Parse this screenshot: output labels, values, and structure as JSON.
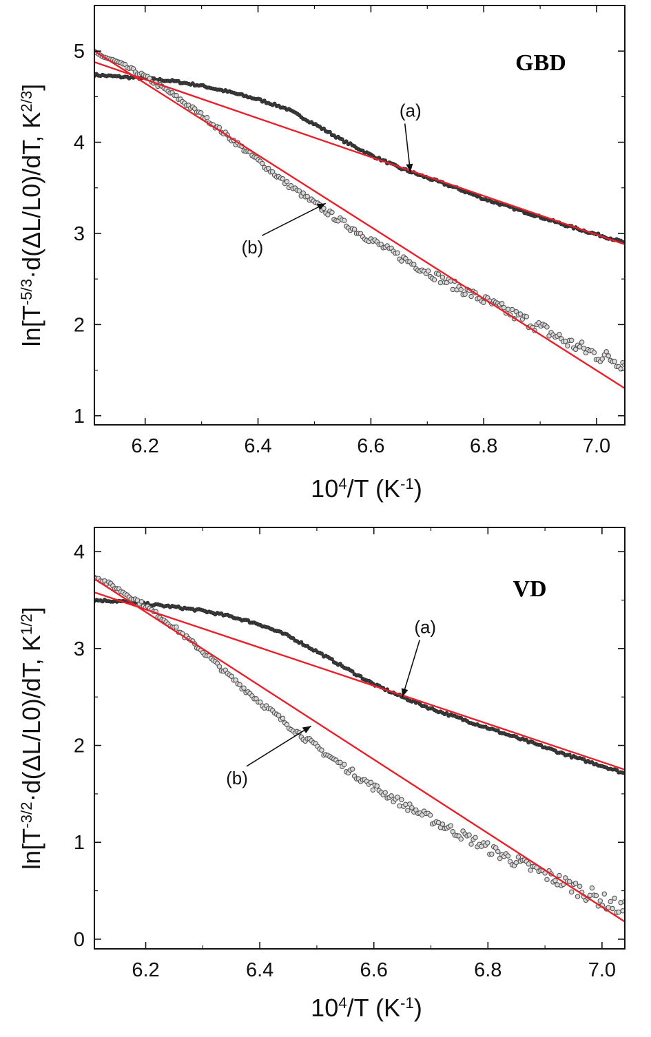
{
  "chart_data": [
    {
      "type": "scatter",
      "panel_label": "GBD",
      "xlabel_parts": [
        "10",
        "4",
        "/T (K",
        "-1",
        ")"
      ],
      "ylabel_parts": [
        "ln[T",
        "-5/3",
        "·d(ΔL/L0)/dT, K",
        "2/3",
        "]"
      ],
      "xlim": [
        6.11,
        7.05
      ],
      "ylim": [
        0.9,
        5.5
      ],
      "xticks": [
        6.2,
        6.4,
        6.6,
        6.8,
        7.0
      ],
      "xtick_labels": [
        "6.2",
        "6.4",
        "6.6",
        "6.8",
        "7.0"
      ],
      "yticks": [
        1,
        2,
        3,
        4,
        5
      ],
      "ytick_labels": [
        "1",
        "2",
        "3",
        "4",
        "5"
      ],
      "grid": false,
      "series": [
        {
          "name": "(a)",
          "color": "#2b2b2b",
          "x": [
            6.11,
            6.15,
            6.2,
            6.25,
            6.3,
            6.35,
            6.4,
            6.45,
            6.5,
            6.55,
            6.6,
            6.65,
            6.7,
            6.75,
            6.8,
            6.85,
            6.9,
            6.95,
            7.0,
            7.05
          ],
          "y": [
            4.74,
            4.72,
            4.7,
            4.67,
            4.62,
            4.55,
            4.47,
            4.37,
            4.2,
            4.02,
            3.86,
            3.72,
            3.61,
            3.5,
            3.38,
            3.28,
            3.18,
            3.08,
            2.99,
            2.9
          ]
        },
        {
          "name": "(b)",
          "color": "#555555",
          "x": [
            6.11,
            6.15,
            6.2,
            6.25,
            6.3,
            6.35,
            6.4,
            6.45,
            6.5,
            6.55,
            6.6,
            6.65,
            6.7,
            6.75,
            6.8,
            6.85,
            6.9,
            6.95,
            7.0,
            7.05
          ],
          "y": [
            4.98,
            4.88,
            4.72,
            4.52,
            4.3,
            4.05,
            3.8,
            3.55,
            3.33,
            3.12,
            2.93,
            2.75,
            2.58,
            2.42,
            2.27,
            2.12,
            1.97,
            1.8,
            1.67,
            1.58
          ]
        }
      ],
      "fits": [
        {
          "name": "(a)",
          "color": "#e8202a",
          "x": [
            6.11,
            7.05
          ],
          "y": [
            4.88,
            2.88
          ]
        },
        {
          "name": "(b)",
          "color": "#e8202a",
          "x": [
            6.11,
            7.05
          ],
          "y": [
            5.0,
            1.3
          ]
        }
      ],
      "annotations": [
        {
          "text": "(a)",
          "x": 6.67,
          "y": 4.28,
          "arrow_to_x": 6.67,
          "arrow_to_y": 3.67
        },
        {
          "text": "(b)",
          "x": 6.39,
          "y": 2.78,
          "arrow_to_x": 6.52,
          "arrow_to_y": 3.33
        }
      ]
    },
    {
      "type": "scatter",
      "panel_label": "VD",
      "xlabel_parts": [
        "10",
        "4",
        "/T (K",
        "-1",
        ")"
      ],
      "ylabel_parts": [
        "ln[T",
        "-3/2",
        "·d(ΔL/L0)/dT, K",
        "1/2",
        "]"
      ],
      "xlim": [
        6.11,
        7.04
      ],
      "ylim": [
        -0.1,
        4.25
      ],
      "xticks": [
        6.2,
        6.4,
        6.6,
        6.8,
        7.0
      ],
      "xtick_labels": [
        "6.2",
        "6.4",
        "6.6",
        "6.8",
        "7.0"
      ],
      "yticks": [
        0,
        1,
        2,
        3,
        4
      ],
      "ytick_labels": [
        "0",
        "1",
        "2",
        "3",
        "4"
      ],
      "grid": false,
      "series": [
        {
          "name": "(a)",
          "color": "#2b2b2b",
          "x": [
            6.11,
            6.15,
            6.2,
            6.25,
            6.3,
            6.35,
            6.4,
            6.45,
            6.5,
            6.55,
            6.6,
            6.65,
            6.7,
            6.75,
            6.8,
            6.85,
            6.9,
            6.95,
            7.0,
            7.04
          ],
          "y": [
            3.5,
            3.49,
            3.46,
            3.43,
            3.39,
            3.33,
            3.25,
            3.13,
            2.97,
            2.8,
            2.63,
            2.5,
            2.38,
            2.28,
            2.18,
            2.08,
            1.98,
            1.88,
            1.79,
            1.71
          ]
        },
        {
          "name": "(b)",
          "color": "#555555",
          "x": [
            6.11,
            6.15,
            6.2,
            6.25,
            6.3,
            6.35,
            6.4,
            6.45,
            6.5,
            6.55,
            6.6,
            6.65,
            6.7,
            6.75,
            6.8,
            6.85,
            6.9,
            6.95,
            7.0,
            7.04
          ],
          "y": [
            3.75,
            3.62,
            3.44,
            3.22,
            2.97,
            2.7,
            2.45,
            2.21,
            1.98,
            1.77,
            1.57,
            1.4,
            1.24,
            1.09,
            0.94,
            0.8,
            0.67,
            0.54,
            0.4,
            0.3
          ]
        }
      ],
      "fits": [
        {
          "name": "(a)",
          "color": "#e8202a",
          "x": [
            6.11,
            7.04
          ],
          "y": [
            3.58,
            1.75
          ]
        },
        {
          "name": "(b)",
          "color": "#e8202a",
          "x": [
            6.11,
            7.04
          ],
          "y": [
            3.72,
            0.18
          ]
        }
      ],
      "annotations": [
        {
          "text": "(a)",
          "x": 6.69,
          "y": 3.16,
          "arrow_to_x": 6.65,
          "arrow_to_y": 2.5
        },
        {
          "text": "(b)",
          "x": 6.36,
          "y": 1.6,
          "arrow_to_x": 6.49,
          "arrow_to_y": 2.2
        }
      ]
    }
  ]
}
